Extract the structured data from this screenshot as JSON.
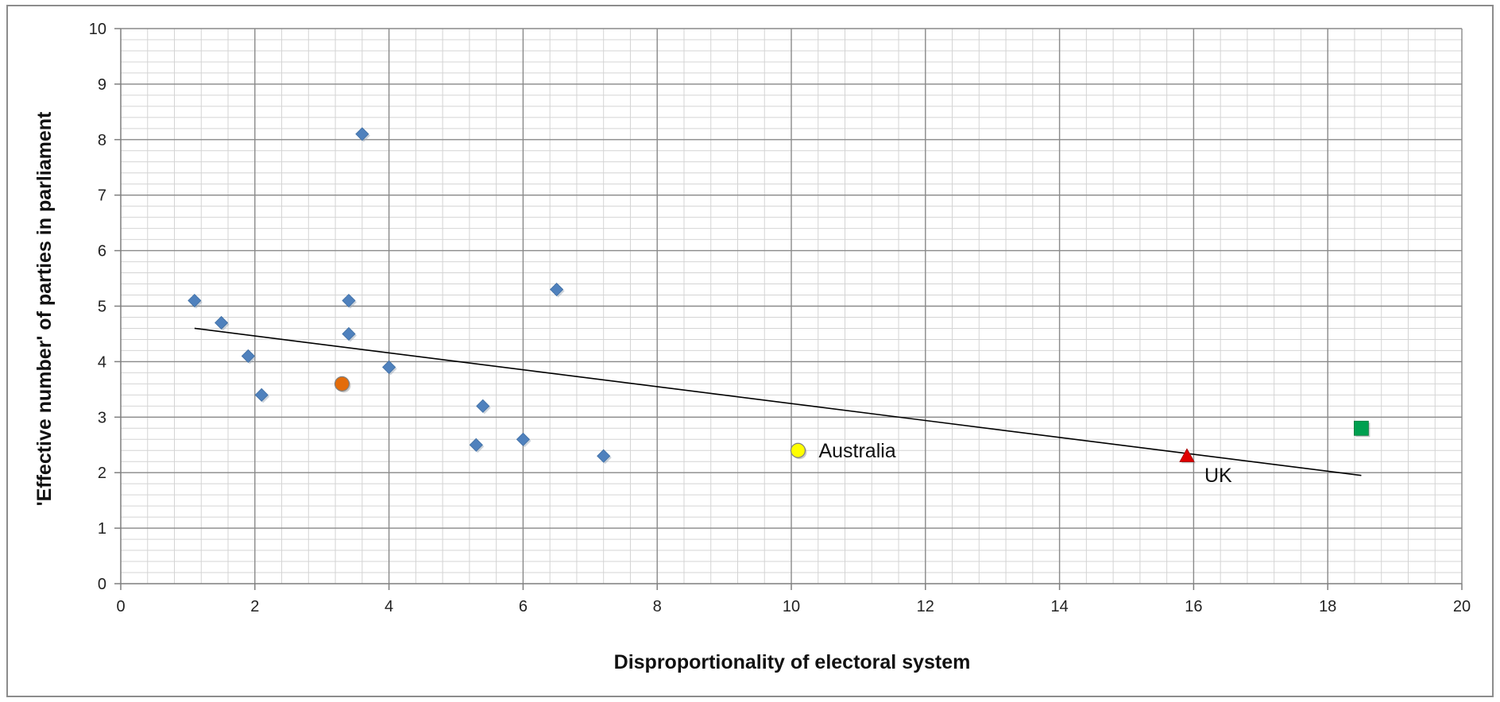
{
  "chart_data": {
    "type": "scatter",
    "title": "",
    "xlabel": "Disproportionality of electoral system",
    "ylabel": "'Effective number' of parties in parliament",
    "xlim": [
      0,
      20
    ],
    "ylim": [
      0,
      10
    ],
    "x_ticks": [
      0,
      2,
      4,
      6,
      8,
      10,
      12,
      14,
      16,
      18,
      20
    ],
    "y_ticks": [
      0,
      1,
      2,
      3,
      4,
      5,
      6,
      7,
      8,
      9,
      10
    ],
    "grid": true,
    "legend": "none",
    "series": [
      {
        "marker": "diamond",
        "color": "#4f81bd",
        "points": [
          {
            "x": 1.1,
            "y": 5.1
          },
          {
            "x": 1.5,
            "y": 4.7
          },
          {
            "x": 1.9,
            "y": 4.1
          },
          {
            "x": 2.1,
            "y": 3.4
          },
          {
            "x": 3.4,
            "y": 5.1
          },
          {
            "x": 3.4,
            "y": 4.5
          },
          {
            "x": 3.6,
            "y": 8.1
          },
          {
            "x": 4.0,
            "y": 3.9
          },
          {
            "x": 5.3,
            "y": 2.5
          },
          {
            "x": 5.4,
            "y": 3.2
          },
          {
            "x": 6.0,
            "y": 2.6
          },
          {
            "x": 6.5,
            "y": 5.3
          },
          {
            "x": 7.2,
            "y": 2.3
          }
        ]
      },
      {
        "marker": "circle",
        "color": "#e46c0a",
        "points": [
          {
            "x": 3.3,
            "y": 3.6
          }
        ]
      },
      {
        "marker": "circle",
        "color": "#ffff00",
        "points": [
          {
            "x": 10.1,
            "y": 2.4,
            "label": "Australia"
          }
        ]
      },
      {
        "marker": "triangle",
        "color": "#e00000",
        "points": [
          {
            "x": 15.9,
            "y": 2.3,
            "label": "UK"
          }
        ]
      },
      {
        "marker": "square",
        "color": "#00a050",
        "points": [
          {
            "x": 18.5,
            "y": 2.8
          }
        ]
      }
    ],
    "trendline": {
      "type": "linear",
      "color": "#000000",
      "points": [
        {
          "x": 1.1,
          "y": 4.6
        },
        {
          "x": 18.5,
          "y": 1.95
        }
      ]
    }
  }
}
